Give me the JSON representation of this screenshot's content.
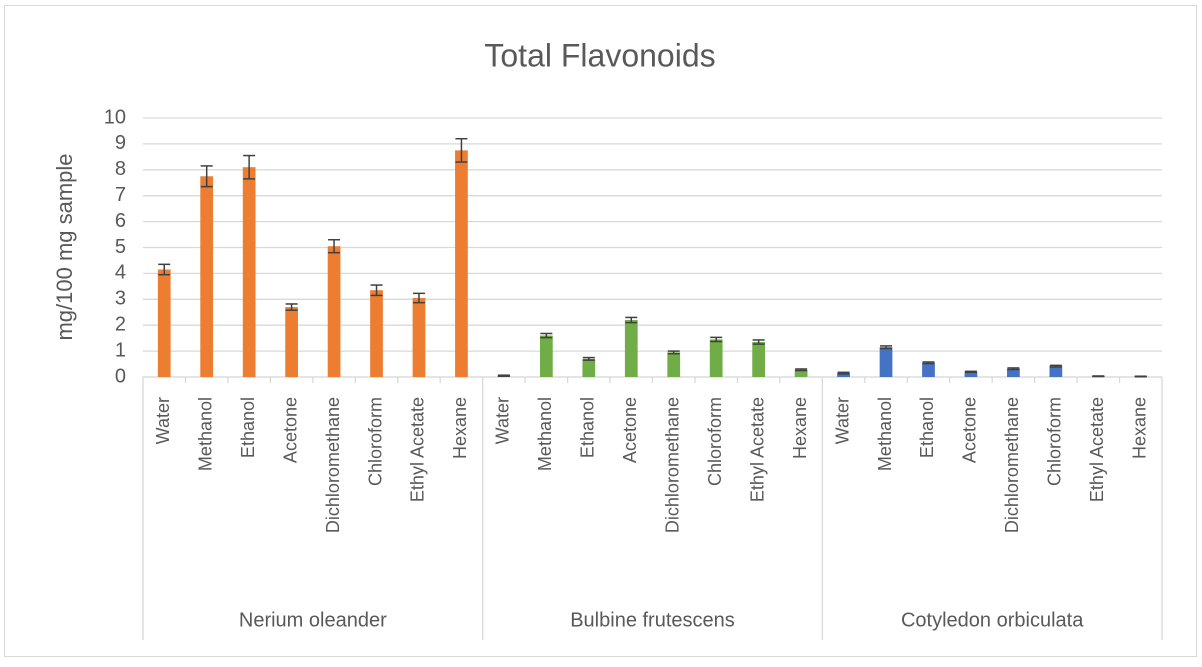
{
  "chart_data": {
    "type": "bar",
    "title": "Total Flavonoids",
    "y_label": "mg/100 mg sample",
    "ylim": [
      0,
      10
    ],
    "yticks": [
      0,
      1,
      2,
      3,
      4,
      5,
      6,
      7,
      8,
      9,
      10
    ],
    "grid": true,
    "groups": [
      {
        "name": "Nerium oleander",
        "color": "#ed7d31",
        "categories": [
          "Water",
          "Methanol",
          "Ethanol",
          "Acetone",
          "Dichloromethane",
          "Chloroform",
          "Ethyl Acetate",
          "Hexane"
        ],
        "values": [
          4.15,
          7.75,
          8.1,
          2.7,
          5.05,
          3.35,
          3.05,
          8.75
        ],
        "errors": [
          0.2,
          0.4,
          0.45,
          0.12,
          0.25,
          0.2,
          0.18,
          0.45
        ]
      },
      {
        "name": "Bulbine frutescens",
        "color": "#70ad47",
        "categories": [
          "Water",
          "Methanol",
          "Ethanol",
          "Acetone",
          "Dichloromethane",
          "Chloroform",
          "Ethyl Acetate",
          "Hexane"
        ],
        "values": [
          0.05,
          1.6,
          0.7,
          2.2,
          0.95,
          1.45,
          1.35,
          0.28
        ],
        "errors": [
          0.02,
          0.08,
          0.05,
          0.1,
          0.05,
          0.08,
          0.08,
          0.03
        ]
      },
      {
        "name": "Cotyledon orbiculata",
        "color": "#4472c4",
        "categories": [
          "Water",
          "Methanol",
          "Ethanol",
          "Acetone",
          "Dichloromethane",
          "Chloroform",
          "Ethyl Acetate",
          "Hexane"
        ],
        "values": [
          0.15,
          1.15,
          0.55,
          0.2,
          0.32,
          0.42,
          0.03,
          0.02
        ],
        "errors": [
          0.03,
          0.05,
          0.03,
          0.02,
          0.03,
          0.03,
          0.01,
          0.01
        ]
      }
    ]
  }
}
